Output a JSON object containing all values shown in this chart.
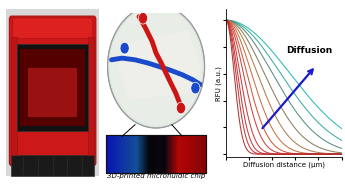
{
  "xlabel": "Diffusion distance (μm)",
  "ylabel": "RFU (a.u.)",
  "diffusion_label": "Diffusion",
  "caption": "3D-printed microfluidic chip",
  "curve_colors": [
    "#20b8b0",
    "#30a898",
    "#508878",
    "#807858",
    "#a87848",
    "#c86838",
    "#d05030",
    "#cc3838",
    "#cc3030",
    "#c83030",
    "#c03030",
    "#b02828"
  ],
  "arrow_color": "#1a1acc",
  "sigma_values": [
    0.55,
    0.47,
    0.4,
    0.33,
    0.27,
    0.22,
    0.18,
    0.15,
    0.12,
    0.1,
    0.085,
    0.07
  ]
}
